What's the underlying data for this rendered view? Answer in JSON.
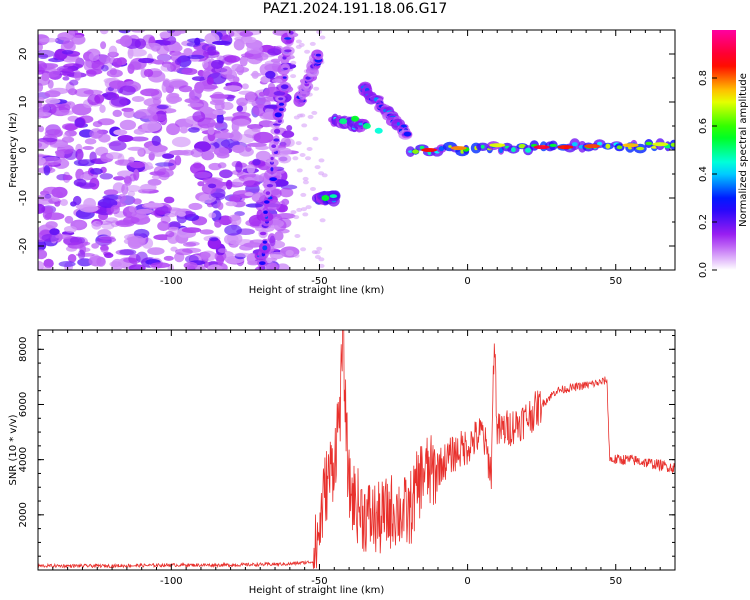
{
  "title": "PAZ1.2024.191.18.06.G17",
  "chart_data": [
    {
      "type": "heatmap",
      "xlabel": "Height of straight line (km)",
      "ylabel": "Frequency (Hz)",
      "xlim": [
        -145,
        70
      ],
      "ylim": [
        -25,
        25
      ],
      "xticks": [
        -100,
        -50,
        0,
        50
      ],
      "yticks": [
        -20,
        -10,
        0,
        10,
        20
      ],
      "colorbar": {
        "label": "Normalized spectral amplitude",
        "range": [
          0,
          1
        ],
        "ticks": [
          0.0,
          0.2,
          0.4,
          0.6,
          0.8
        ],
        "colors": [
          "#ffffff",
          "#a020f0",
          "#0000ff",
          "#00ffff",
          "#00ff00",
          "#ffff00",
          "#ff0000",
          "#ff00a0"
        ]
      },
      "features": [
        {
          "x": [
            -70,
            -60
          ],
          "y": [
            -25,
            25
          ],
          "amplitude": 0.25
        },
        {
          "x": [
            -57,
            -50
          ],
          "y": [
            10,
            20
          ],
          "amplitude": 0.25
        },
        {
          "x": [
            -50,
            -45
          ],
          "y": [
            -10,
            -10
          ],
          "amplitude": 0.45
        },
        {
          "x": [
            -45,
            -35
          ],
          "y": [
            6,
            5
          ],
          "amplitude": 0.35
        },
        {
          "x": [
            -35,
            -20
          ],
          "y": [
            13,
            3
          ],
          "amplitude": 0.3
        },
        {
          "x": [
            -20,
            70
          ],
          "y": [
            0,
            1
          ],
          "amplitude": 0.55
        }
      ]
    },
    {
      "type": "line",
      "xlabel": "Height of straight line (km)",
      "ylabel": "SNR (10 * v/v)",
      "xlim": [
        -145,
        70
      ],
      "ylim": [
        0,
        8700
      ],
      "xticks": [
        -100,
        -50,
        0,
        50
      ],
      "yticks": [
        2000,
        4000,
        6000,
        8000
      ],
      "color": "#e8302c",
      "series": [
        {
          "x": [
            -145,
            -120,
            -100,
            -80,
            -60,
            -52,
            -50,
            -48,
            -45,
            -43,
            -42,
            -41,
            -40,
            -38,
            -35,
            -30,
            -25,
            -20,
            -15,
            -12,
            -10,
            -5,
            0,
            5,
            8,
            9,
            10,
            15,
            20,
            25,
            30,
            35,
            40,
            45,
            47,
            48,
            50,
            55,
            60,
            65,
            70
          ],
          "y": [
            150,
            150,
            180,
            180,
            220,
            300,
            1500,
            3000,
            4000,
            6000,
            8600,
            5000,
            3000,
            2500,
            2000,
            1800,
            2200,
            2000,
            3600,
            3500,
            3700,
            4200,
            4500,
            5000,
            3500,
            8600,
            5000,
            5200,
            5500,
            6000,
            6500,
            6600,
            6700,
            6800,
            6900,
            4000,
            4000,
            4000,
            3900,
            3800,
            3700
          ]
        }
      ]
    }
  ]
}
